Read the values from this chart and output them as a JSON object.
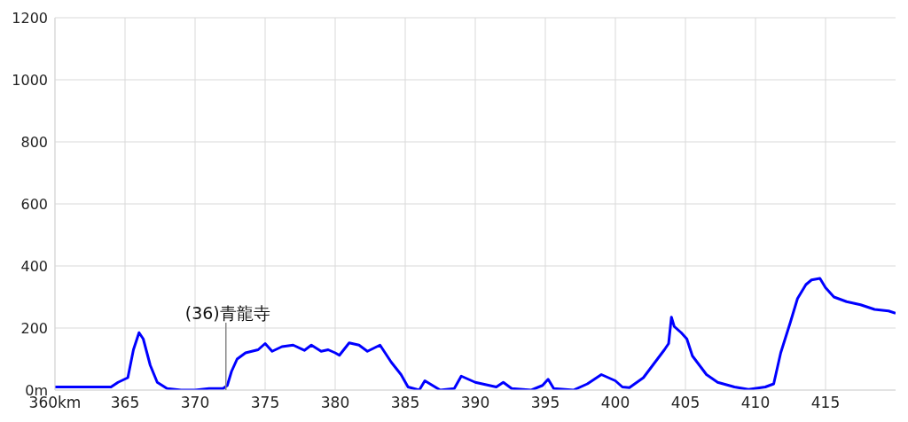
{
  "chart_data": {
    "type": "line",
    "x": [
      360,
      364,
      364.5,
      365.2,
      365.6,
      366,
      366.3,
      366.8,
      367.3,
      368,
      369,
      370,
      371,
      372,
      372.3,
      372.6,
      373,
      373.6,
      374.5,
      375,
      375.5,
      376.2,
      377,
      377.8,
      378.3,
      379,
      379.5,
      380,
      380.3,
      381,
      381.7,
      382.3,
      383.2,
      384,
      384.7,
      385.2,
      386,
      386.4,
      387.5,
      388.5,
      389,
      390,
      391.5,
      392,
      392.6,
      394,
      394.8,
      395.2,
      395.6,
      397,
      398,
      399,
      400,
      400.5,
      401,
      402,
      403,
      403.5,
      403.8,
      404,
      404.2,
      404.7,
      405.1,
      405.5,
      406,
      406.5,
      407.3,
      408.5,
      409.5,
      410.7,
      411.3,
      411.8,
      412.5,
      413,
      413.6,
      414,
      414.6,
      415,
      415.6,
      416.5,
      417.5,
      418.5,
      419.5,
      420
    ],
    "series": [
      {
        "color": "#0000ff",
        "values": [
          10,
          10,
          25,
          40,
          130,
          185,
          165,
          80,
          25,
          5,
          0,
          0,
          5,
          5,
          15,
          60,
          100,
          120,
          130,
          150,
          125,
          140,
          145,
          128,
          145,
          125,
          130,
          120,
          112,
          152,
          145,
          125,
          145,
          90,
          50,
          10,
          0,
          30,
          0,
          5,
          45,
          25,
          10,
          25,
          5,
          0,
          15,
          35,
          5,
          0,
          20,
          50,
          30,
          10,
          8,
          40,
          100,
          130,
          150,
          235,
          205,
          185,
          165,
          110,
          80,
          50,
          25,
          10,
          2,
          10,
          20,
          120,
          220,
          295,
          340,
          355,
          360,
          330,
          300,
          285,
          275,
          260,
          255,
          248
        ]
      }
    ],
    "xlim": [
      360,
      420
    ],
    "xticks": [
      {
        "value": 360,
        "label": "360km"
      },
      365,
      370,
      375,
      380,
      385,
      390,
      395,
      400,
      405,
      410,
      415
    ],
    "ylim": [
      0,
      1200
    ],
    "yticks": [
      {
        "value": 0,
        "label": "0m"
      },
      200,
      400,
      600,
      800,
      1000,
      1200
    ],
    "grid": true,
    "marker": "none",
    "line_style": "solid",
    "ref_lines": [
      {
        "axis": "x",
        "value": 372.2,
        "label": "(36)青龍寺",
        "color": "#888888"
      }
    ]
  }
}
